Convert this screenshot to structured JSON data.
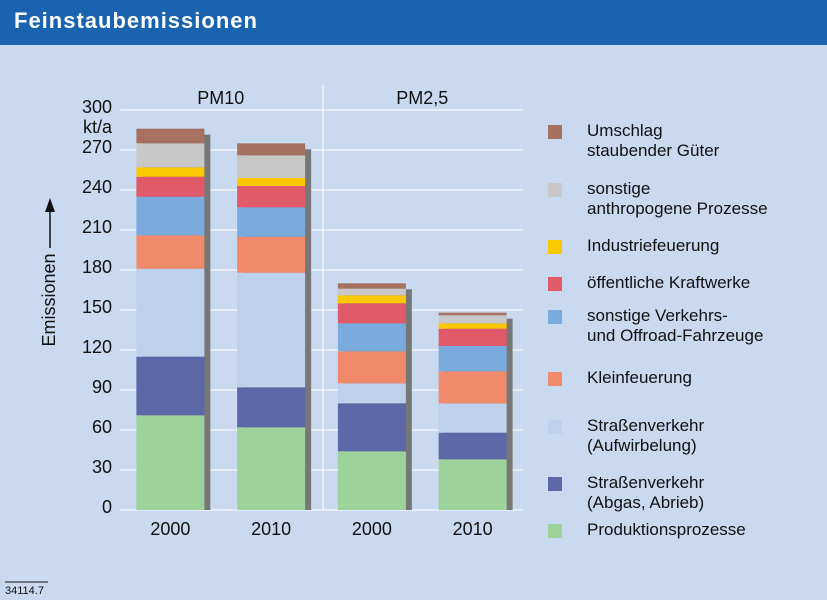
{
  "chart_data": {
    "type": "stacked_bar",
    "title": "Feinstaubemissionen",
    "y_label": "Emissionen",
    "y_unit": "kt/a",
    "groups": [
      "PM10",
      "PM2,5"
    ],
    "categories": [
      "2000",
      "2010",
      "2000",
      "2010"
    ],
    "ylim": [
      0,
      300
    ],
    "yticks": [
      0,
      30,
      60,
      90,
      120,
      150,
      180,
      210,
      240,
      270,
      300
    ],
    "grid": true,
    "series": [
      {
        "name": "Produktionsprozesse",
        "color": "#9dd39a",
        "values": [
          71,
          62,
          44,
          38
        ]
      },
      {
        "name": "Straßenverkehr\n(Abgas, Abrieb)",
        "color": "#5c68a8",
        "values": [
          44,
          30,
          36,
          20
        ]
      },
      {
        "name": "Straßenverkehr\n(Aufwirbelung)",
        "color": "#bdd0ec",
        "values": [
          66,
          86,
          15,
          22
        ]
      },
      {
        "name": "Kleinfeuerung",
        "color": "#f08a6a",
        "values": [
          25,
          27,
          24,
          24
        ]
      },
      {
        "name": "sonstige Verkehrs-\nund Offroad-Fahrzeuge",
        "color": "#7aaade",
        "values": [
          29,
          22,
          21,
          19
        ]
      },
      {
        "name": "öffentliche Kraftwerke",
        "color": "#e05a6a",
        "values": [
          15,
          16,
          15,
          13
        ]
      },
      {
        "name": "Industriefeuerung",
        "color": "#fcc800",
        "values": [
          7,
          6,
          6,
          4
        ]
      },
      {
        "name": "sonstige\nanthropogene Prozesse",
        "color": "#c8c8c8",
        "values": [
          18,
          17,
          5,
          6
        ]
      },
      {
        "name": "Umschlag\nstaubender Güter",
        "color": "#a87060",
        "values": [
          11,
          9,
          4,
          2
        ]
      }
    ],
    "footnote": "34114.7"
  }
}
